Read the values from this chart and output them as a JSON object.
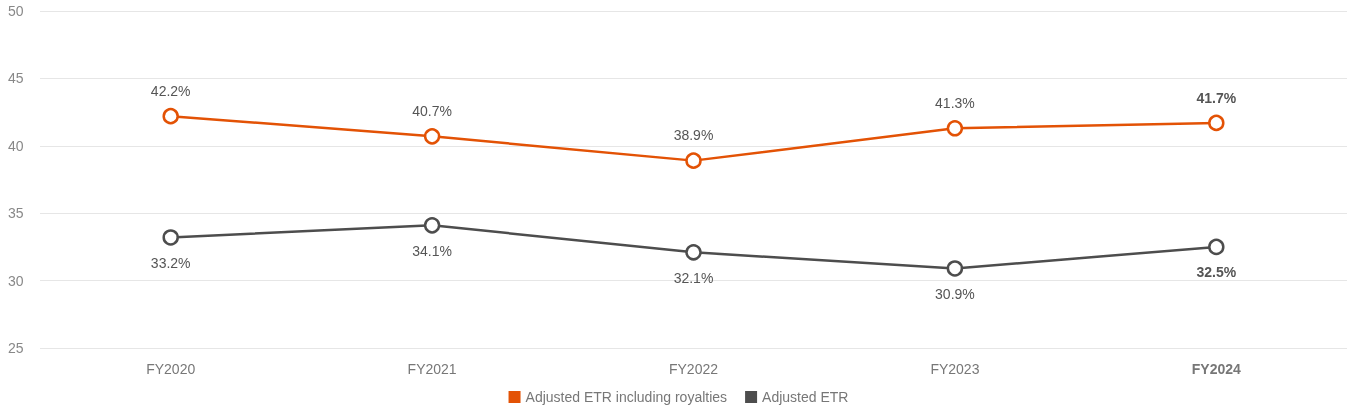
{
  "chart_data": {
    "type": "line",
    "categories": [
      "FY2020",
      "FY2021",
      "FY2022",
      "FY2023",
      "FY2024"
    ],
    "series": [
      {
        "name": "Adjusted ETR including royalties",
        "color": "#e35205",
        "values": [
          42.2,
          40.7,
          38.9,
          41.3,
          41.7
        ],
        "value_labels": [
          "42.2%",
          "40.7%",
          "38.9%",
          "41.3%",
          "41.7%"
        ]
      },
      {
        "name": "Adjusted ETR",
        "color": "#4d4d4d",
        "values": [
          33.2,
          34.1,
          32.1,
          30.9,
          32.5
        ],
        "value_labels": [
          "33.2%",
          "34.1%",
          "32.1%",
          "30.9%",
          "32.5%"
        ]
      }
    ],
    "ylim": [
      25,
      50
    ],
    "yticks": [
      25,
      30,
      35,
      40,
      45,
      50
    ],
    "grid": "y",
    "legend": "bottom",
    "marker": "circle",
    "line_style": "solid"
  }
}
